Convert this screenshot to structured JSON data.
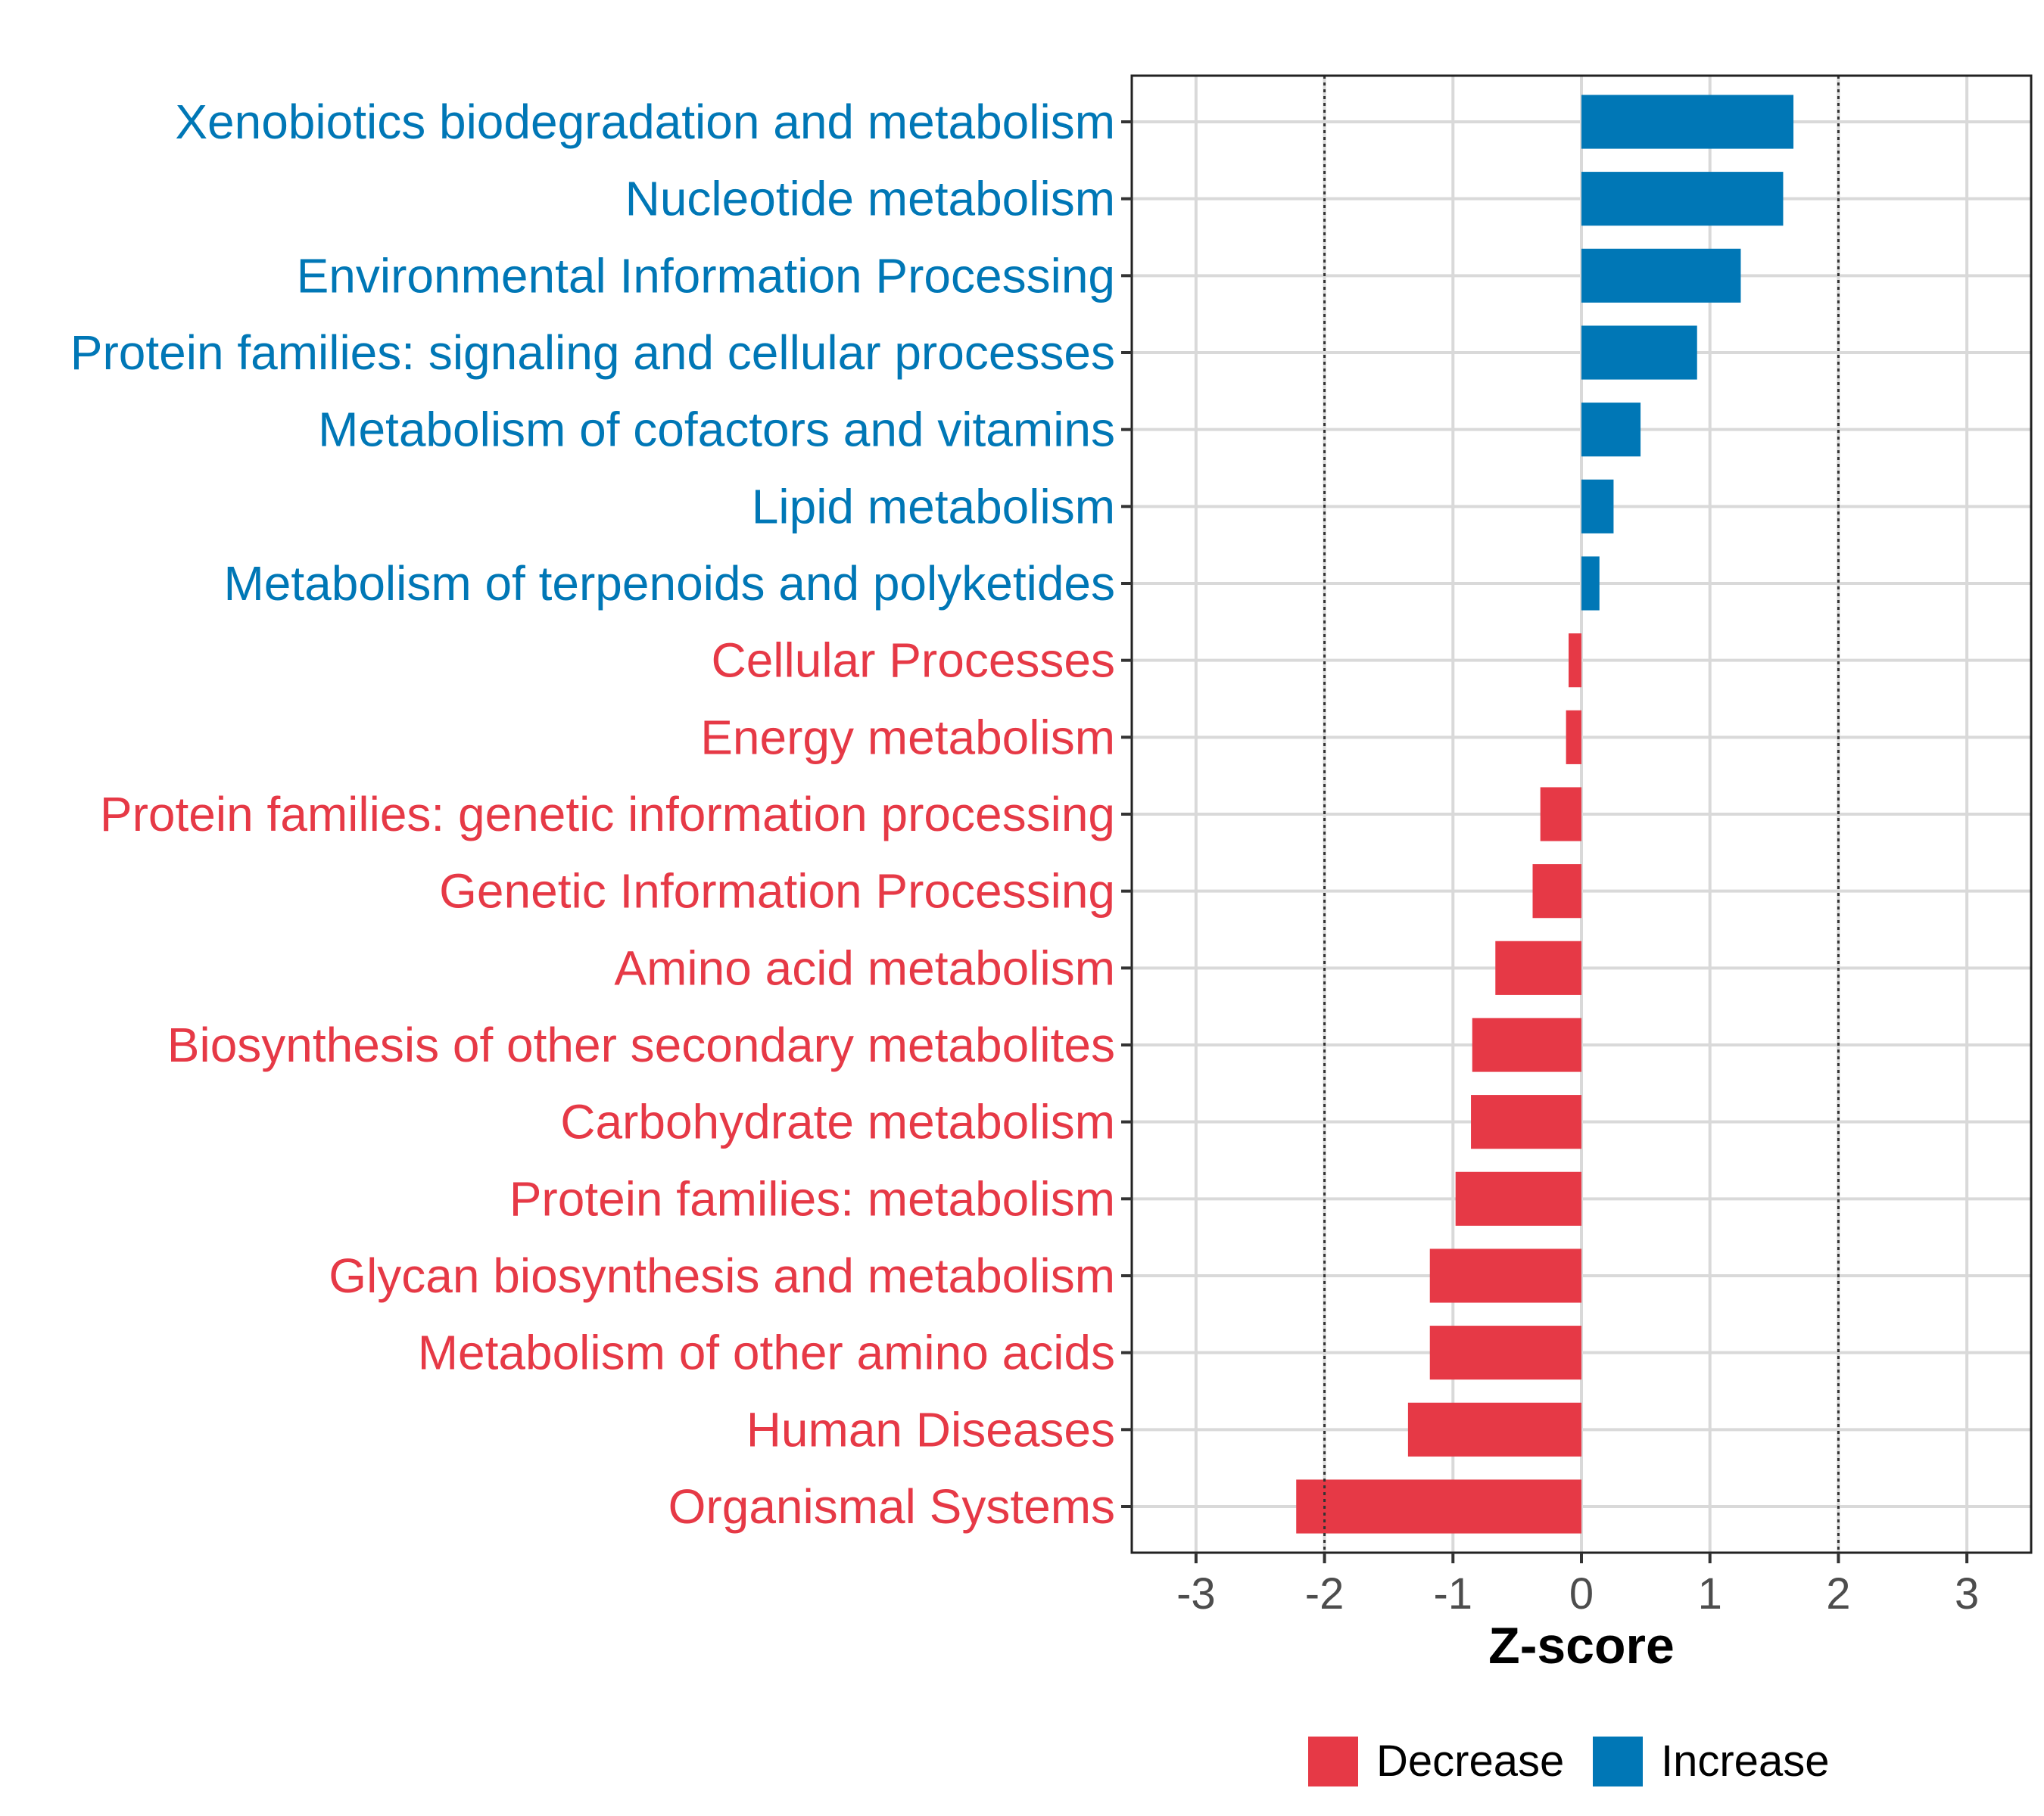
{
  "chart_data": {
    "type": "bar",
    "orientation": "horizontal",
    "title": "",
    "xlabel": "Z-score",
    "ylabel": "",
    "xlim": [
      -3.5,
      3.5
    ],
    "xticks": [
      -3,
      -2,
      -1,
      0,
      1,
      2,
      3
    ],
    "xtick_labels": [
      "-3",
      "-2",
      "-1",
      "0",
      "1",
      "2",
      "3"
    ],
    "reference_lines": [
      -2,
      2
    ],
    "grid": true,
    "categories": [
      "Xenobiotics biodegradation and metabolism",
      "Nucleotide metabolism",
      "Environmental Information Processing",
      "Protein families: signaling and cellular processes",
      "Metabolism of cofactors and vitamins",
      "Lipid metabolism",
      "Metabolism of terpenoids and polyketides",
      "Cellular Processes",
      "Energy metabolism",
      "Protein families: genetic information processing",
      "Genetic Information Processing",
      "Amino acid metabolism",
      "Biosynthesis of other secondary metabolites",
      "Carbohydrate metabolism",
      "Protein families: metabolism",
      "Glycan biosynthesis and metabolism",
      "Metabolism of other amino acids",
      "Human Diseases",
      "Organismal Systems"
    ],
    "values": [
      1.65,
      1.57,
      1.24,
      0.9,
      0.46,
      0.25,
      0.14,
      -0.1,
      -0.12,
      -0.32,
      -0.38,
      -0.67,
      -0.85,
      -0.86,
      -0.98,
      -1.18,
      -1.18,
      -1.35,
      -2.22
    ],
    "groups": [
      "Increase",
      "Increase",
      "Increase",
      "Increase",
      "Increase",
      "Increase",
      "Increase",
      "Decrease",
      "Decrease",
      "Decrease",
      "Decrease",
      "Decrease",
      "Decrease",
      "Decrease",
      "Decrease",
      "Decrease",
      "Decrease",
      "Decrease",
      "Decrease"
    ],
    "colors": {
      "Decrease": "#e63946",
      "Increase": "#0077b6"
    },
    "legend": {
      "position": "bottom",
      "entries": [
        "Decrease",
        "Increase"
      ]
    }
  }
}
